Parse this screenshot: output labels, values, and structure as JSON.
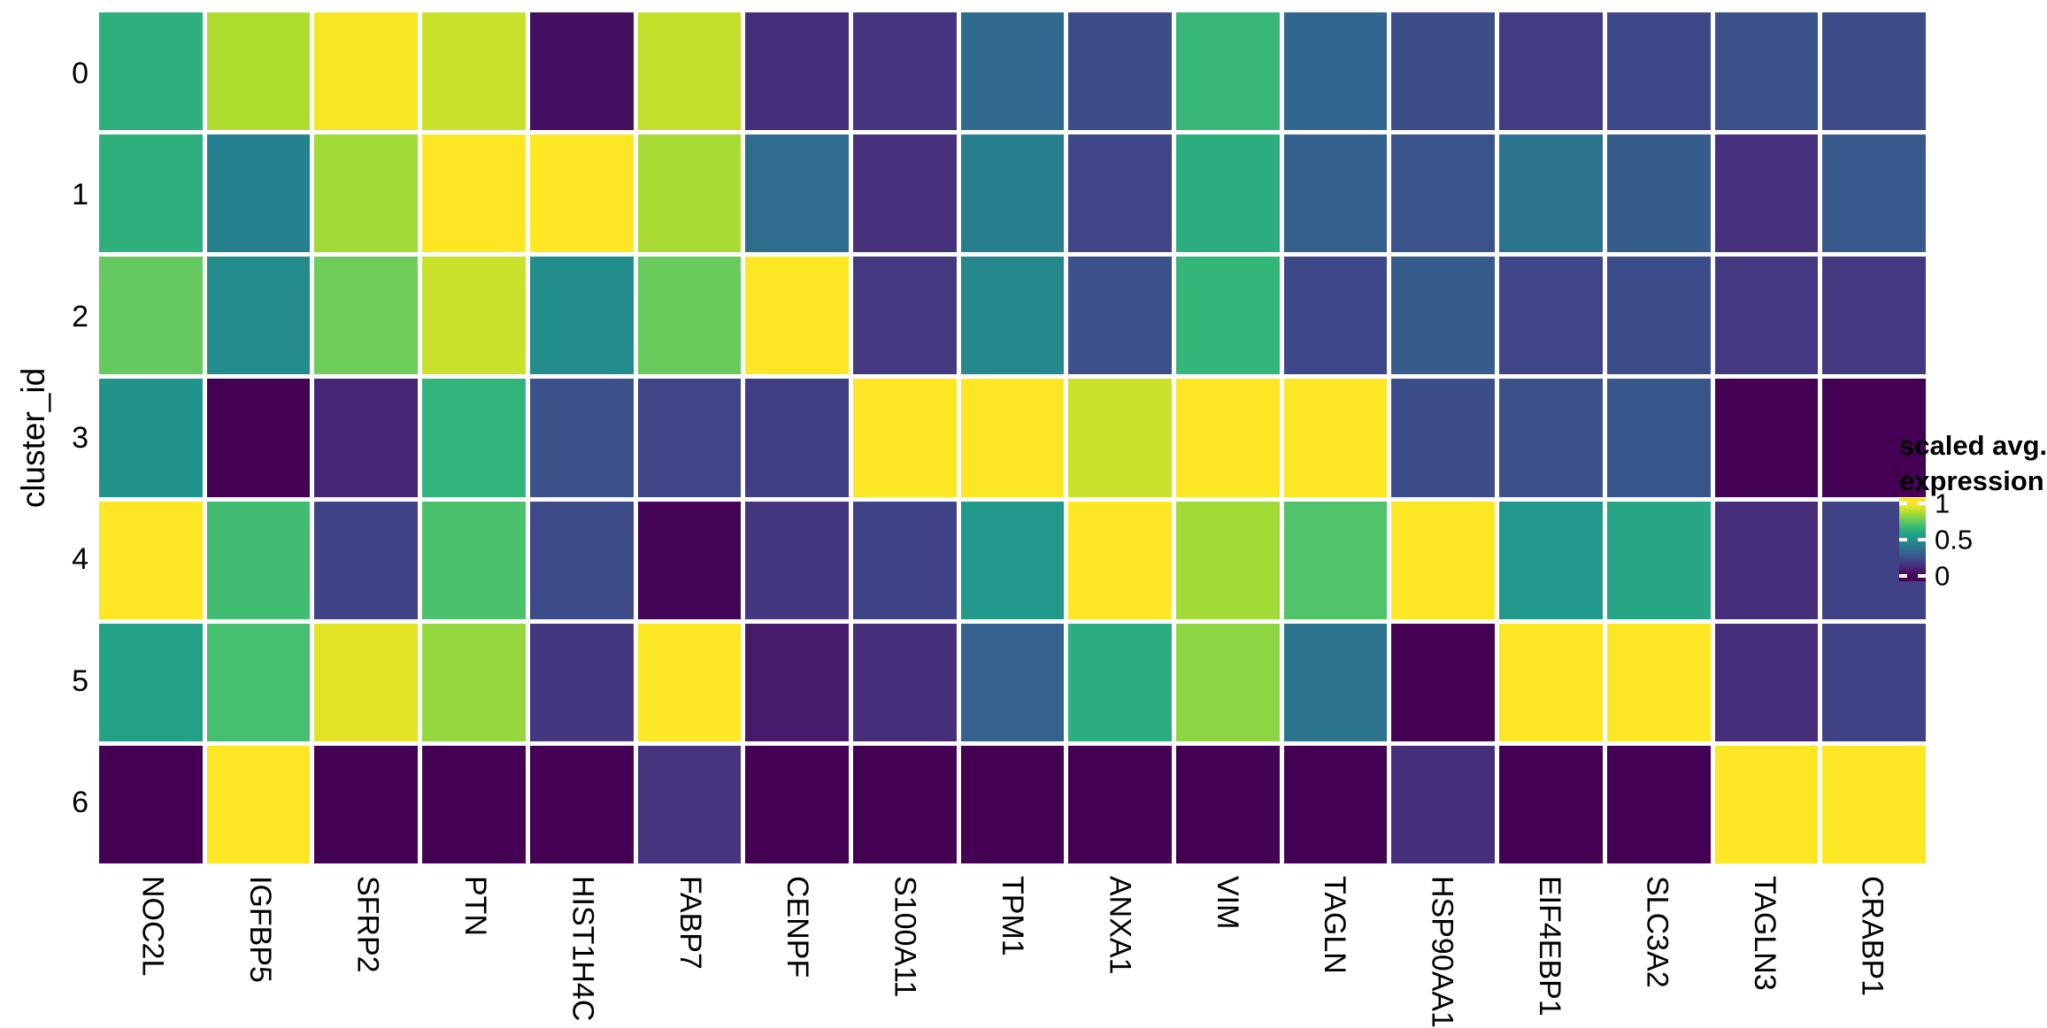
{
  "chart": {
    "y_axis_title": "cluster_id",
    "legend": {
      "title_line1": "scaled avg.",
      "title_line2": "expression",
      "tick_labels": [
        "1",
        "0.5",
        "0"
      ],
      "tick_values": [
        1,
        0.5,
        0
      ]
    }
  },
  "chart_data": {
    "type": "heatmap",
    "title": "",
    "xlabel": "",
    "ylabel": "cluster_id",
    "legend_title": "scaled avg. expression",
    "x": [
      "NOC2L",
      "IGFBP5",
      "SFRP2",
      "PTN",
      "HIST1H4C",
      "FABP7",
      "CENPF",
      "S100A11",
      "TPM1",
      "ANXA1",
      "VIM",
      "TAGLN",
      "HSP90AA1",
      "EIF4EBP1",
      "SLC3A2",
      "TAGLN3",
      "CRABP1"
    ],
    "y": [
      "0",
      "1",
      "2",
      "3",
      "4",
      "5",
      "6"
    ],
    "values": [
      [
        0.63,
        0.88,
        0.99,
        0.92,
        0.04,
        0.91,
        0.13,
        0.15,
        0.34,
        0.24,
        0.67,
        0.33,
        0.24,
        0.18,
        0.22,
        0.25,
        0.23
      ],
      [
        0.63,
        0.44,
        0.86,
        1.0,
        1.0,
        0.87,
        0.35,
        0.14,
        0.43,
        0.21,
        0.62,
        0.3,
        0.26,
        0.38,
        0.29,
        0.14,
        0.28
      ],
      [
        0.76,
        0.48,
        0.78,
        0.92,
        0.49,
        0.77,
        1.0,
        0.17,
        0.47,
        0.25,
        0.66,
        0.22,
        0.29,
        0.21,
        0.24,
        0.17,
        0.17
      ],
      [
        0.51,
        0.0,
        0.1,
        0.65,
        0.25,
        0.21,
        0.19,
        1.0,
        1.0,
        0.92,
        1.0,
        1.0,
        0.24,
        0.25,
        0.27,
        0.0,
        0.0
      ],
      [
        1.0,
        0.69,
        0.2,
        0.71,
        0.23,
        0.01,
        0.16,
        0.2,
        0.53,
        1.0,
        0.86,
        0.72,
        1.0,
        0.53,
        0.59,
        0.13,
        0.2
      ],
      [
        0.57,
        0.7,
        0.96,
        0.84,
        0.16,
        1.0,
        0.07,
        0.13,
        0.31,
        0.62,
        0.83,
        0.38,
        0.0,
        1.0,
        1.0,
        0.13,
        0.2
      ],
      [
        0.0,
        1.0,
        0.0,
        0.0,
        0.0,
        0.15,
        0.0,
        0.0,
        0.0,
        0.0,
        0.0,
        0.0,
        0.13,
        0.0,
        0.0,
        1.0,
        1.0
      ]
    ],
    "vmin": 0,
    "vmax": 1,
    "colormap": "viridis",
    "legend_position": "right",
    "grid": "white cell gaps"
  },
  "colors": {
    "background": "#ffffff",
    "text": "#000000",
    "viridis_stops": [
      "#440154",
      "#482878",
      "#3e4989",
      "#31688e",
      "#26828e",
      "#1f9e89",
      "#35b779",
      "#6dcd59",
      "#b4de2c",
      "#fde725"
    ]
  }
}
